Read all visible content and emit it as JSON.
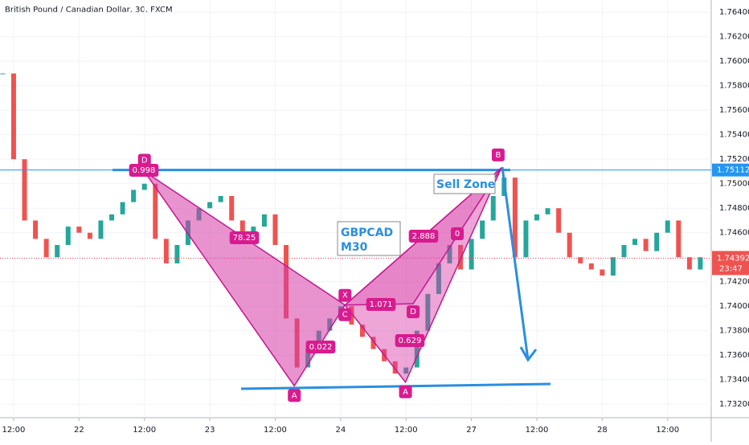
{
  "chart_data": {
    "type": "candlestick",
    "title": "British Pound / Canadian Dollar, 30, FXCM",
    "series": [
      {
        "name": "GBPCAD",
        "up_color": "#26a69a",
        "down_color": "#ef5350",
        "x": [
          -2,
          0,
          2,
          4,
          6,
          8,
          10,
          12,
          14,
          16,
          18,
          20,
          22,
          24,
          26,
          28,
          30,
          32,
          34,
          36,
          38,
          40,
          42,
          44,
          46,
          48,
          50,
          52,
          54,
          56,
          58,
          60,
          62,
          64,
          66,
          68,
          70,
          72,
          74,
          76,
          78,
          80,
          82,
          84,
          86,
          88,
          90,
          92,
          94,
          96,
          98,
          100,
          102,
          104,
          106,
          108,
          110,
          112,
          114,
          116,
          118,
          120,
          122,
          124,
          126
        ],
        "values": [
          1.759,
          1.752,
          1.747,
          1.7455,
          1.744,
          1.745,
          1.7465,
          1.746,
          1.7455,
          1.747,
          1.7475,
          1.7485,
          1.7495,
          1.75,
          1.7455,
          1.7435,
          1.745,
          1.747,
          1.748,
          1.7485,
          1.749,
          1.747,
          1.7455,
          1.7465,
          1.7475,
          1.745,
          1.739,
          1.735,
          1.7365,
          1.738,
          1.739,
          1.74,
          1.7385,
          1.7375,
          1.7365,
          1.7355,
          1.7345,
          1.735,
          1.738,
          1.741,
          1.7435,
          1.745,
          1.743,
          1.7455,
          1.747,
          1.749,
          1.7505,
          1.744,
          1.747,
          1.7475,
          1.748,
          1.746,
          1.744,
          1.7435,
          1.743,
          1.7425,
          1.744,
          1.745,
          1.7455,
          1.7445,
          1.746,
          1.747,
          1.744,
          1.743,
          1.744
        ]
      }
    ],
    "xlim": [
      -2.5,
      128
    ],
    "xticks": [
      {
        "value": 0,
        "label": "12:00"
      },
      {
        "value": 12,
        "label": "22"
      },
      {
        "value": 24,
        "label": "12:00"
      },
      {
        "value": 36,
        "label": "23"
      },
      {
        "value": 48,
        "label": "12:00"
      },
      {
        "value": 60,
        "label": "24"
      },
      {
        "value": 72,
        "label": "12:00"
      },
      {
        "value": 84,
        "label": "27"
      },
      {
        "value": 96,
        "label": "12:00"
      },
      {
        "value": 108,
        "label": "28"
      },
      {
        "value": 120,
        "label": "12:00"
      }
    ],
    "ylim": [
      1.7309,
      1.765
    ],
    "yticks": [
      {
        "value": 1.764,
        "label": "1.76400"
      },
      {
        "value": 1.762,
        "label": "1.76200"
      },
      {
        "value": 1.76,
        "label": "1.76000"
      },
      {
        "value": 1.758,
        "label": "1.75800"
      },
      {
        "value": 1.756,
        "label": "1.75600"
      },
      {
        "value": 1.754,
        "label": "1.75400"
      },
      {
        "value": 1.752,
        "label": "1.75200"
      },
      {
        "value": 1.75,
        "label": "1.75000"
      },
      {
        "value": 1.748,
        "label": "1.74800"
      },
      {
        "value": 1.746,
        "label": "1.74600"
      },
      {
        "value": 1.744,
        "label": "1.74400"
      },
      {
        "value": 1.742,
        "label": "1.74200"
      },
      {
        "value": 1.74,
        "label": "1.74000"
      },
      {
        "value": 1.738,
        "label": "1.73800"
      },
      {
        "value": 1.736,
        "label": "1.73600"
      },
      {
        "value": 1.734,
        "label": "1.73400"
      },
      {
        "value": 1.732,
        "label": "1.73200"
      }
    ],
    "grid": true,
    "level": 1.75112,
    "last_price": 1.74392,
    "countdown": "23:47",
    "pattern_points": [
      {
        "label": "D",
        "x": 24,
        "y": 1.751
      },
      {
        "label": "A",
        "x": 51.5,
        "y": 1.7335
      },
      {
        "label": "X",
        "x": 60.8,
        "y": 1.7401
      },
      {
        "label": "C",
        "x": 60.8,
        "y": 1.7401
      },
      {
        "label": "A",
        "x": 71.9,
        "y": 1.7338
      },
      {
        "label": "D",
        "x": 73.3,
        "y": 1.7402
      },
      {
        "label": "B",
        "x": 89.5,
        "y": 1.7513
      }
    ],
    "ratios": [
      0.998,
      78.25,
      1.071,
      0.022,
      0.629,
      2.888,
      0
    ],
    "annotations": [
      "Sell Zone",
      "GBPCAD\nM30"
    ]
  }
}
